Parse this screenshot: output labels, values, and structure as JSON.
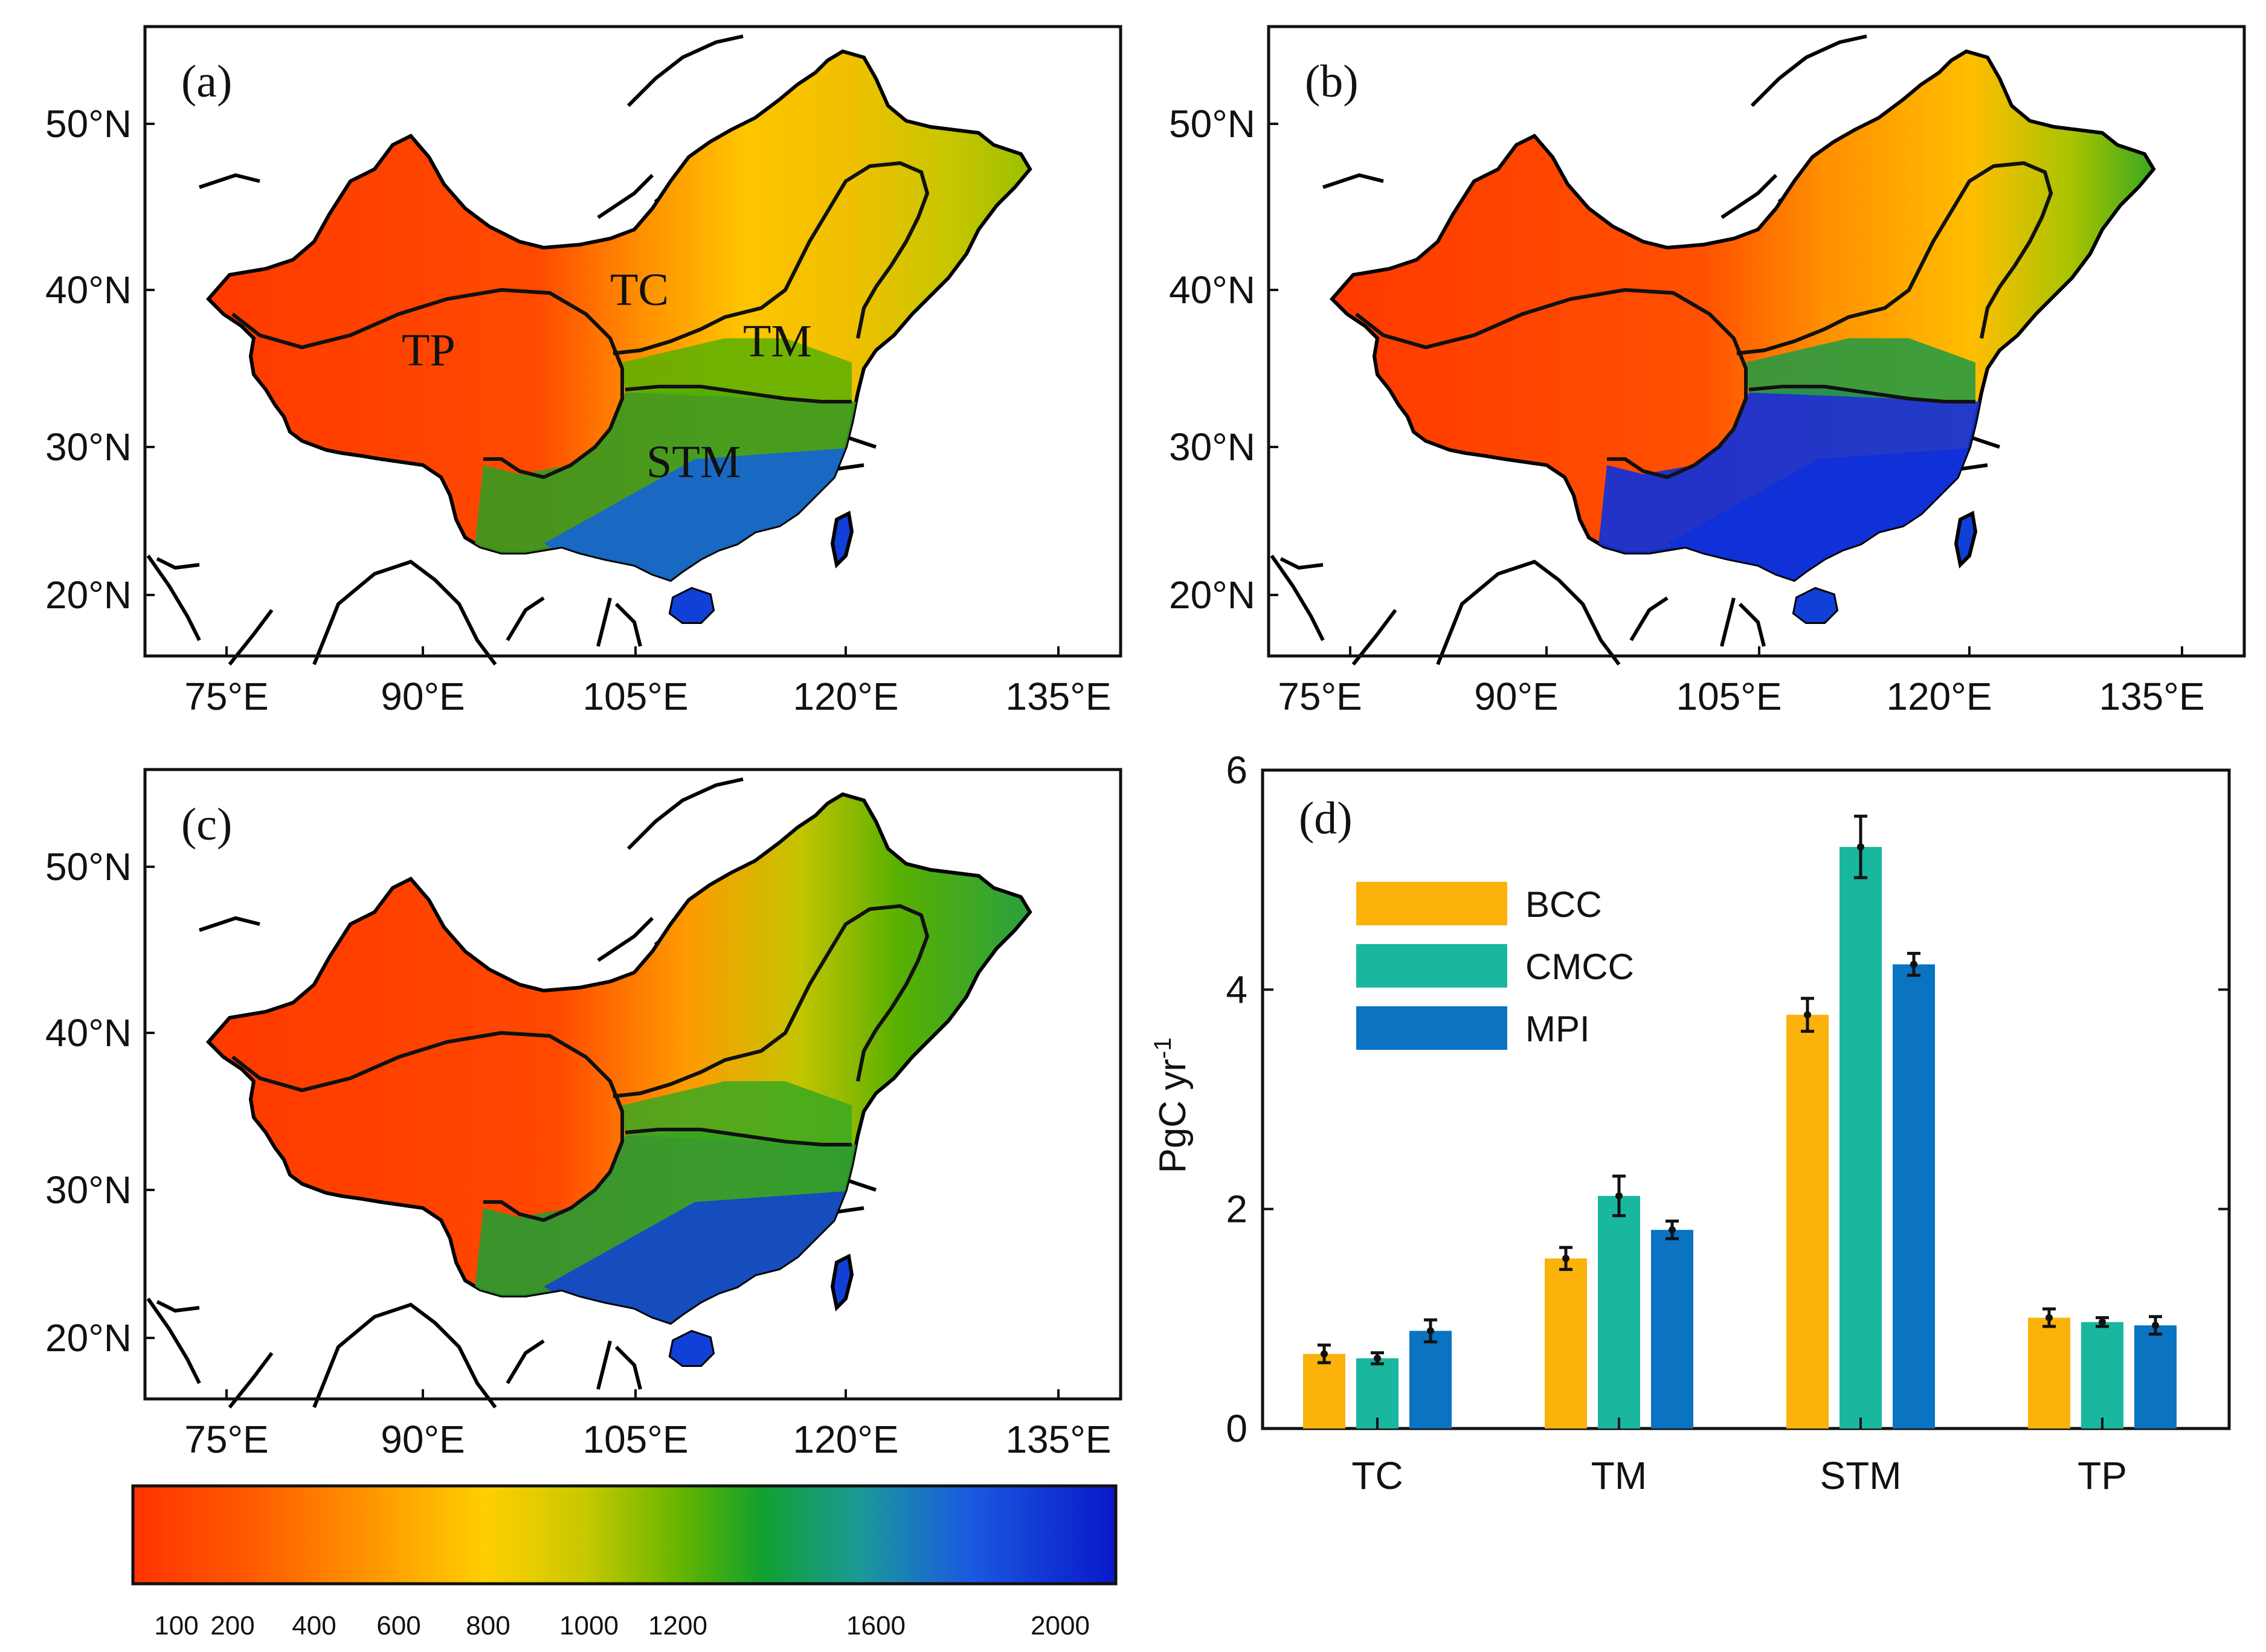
{
  "figure": {
    "map_panels": [
      {
        "label": "(a)",
        "regions": [
          "TC",
          "TP",
          "TM",
          "STM"
        ]
      },
      {
        "label": "(b)",
        "regions": []
      },
      {
        "label": "(c)",
        "regions": []
      }
    ],
    "map_axes": {
      "lon_ticks": [
        "75°E",
        "90°E",
        "105°E",
        "120°E",
        "135°E"
      ],
      "lat_ticks": [
        "50°N",
        "40°N",
        "30°N",
        "20°N"
      ]
    },
    "colorbar": {
      "ticks": [
        "100",
        "200",
        "400",
        "600",
        "800",
        "1000",
        "1200",
        "1600",
        "2000"
      ],
      "colors": [
        "#ff3300",
        "#ff6a00",
        "#ffa500",
        "#ffd000",
        "#c6c800",
        "#6fb300",
        "#12a02a",
        "#1a9aa0",
        "#1a58e0",
        "#0a1ccc"
      ]
    }
  },
  "chart_data": {
    "type": "bar",
    "panel_label": "(d)",
    "categories": [
      "TC",
      "TM",
      "STM",
      "TP"
    ],
    "series": [
      {
        "name": "BCC",
        "color": "#fbb20a",
        "values": [
          0.68,
          1.55,
          3.77,
          1.01
        ],
        "errors": [
          0.08,
          0.1,
          0.15,
          0.08
        ]
      },
      {
        "name": "CMCC",
        "color": "#18b79e",
        "values": [
          0.64,
          2.12,
          5.3,
          0.97
        ],
        "errors": [
          0.05,
          0.18,
          0.28,
          0.04
        ]
      },
      {
        "name": "MPI",
        "color": "#0a73c2",
        "values": [
          0.89,
          1.81,
          4.23,
          0.94
        ],
        "errors": [
          0.1,
          0.08,
          0.1,
          0.08
        ]
      }
    ],
    "ylabel": "PgC yr",
    "ylabel_exponent": "-1",
    "ylim": [
      0,
      6
    ],
    "yticks": [
      "0",
      "2",
      "4",
      "6"
    ],
    "legend_position": "upper-left"
  }
}
